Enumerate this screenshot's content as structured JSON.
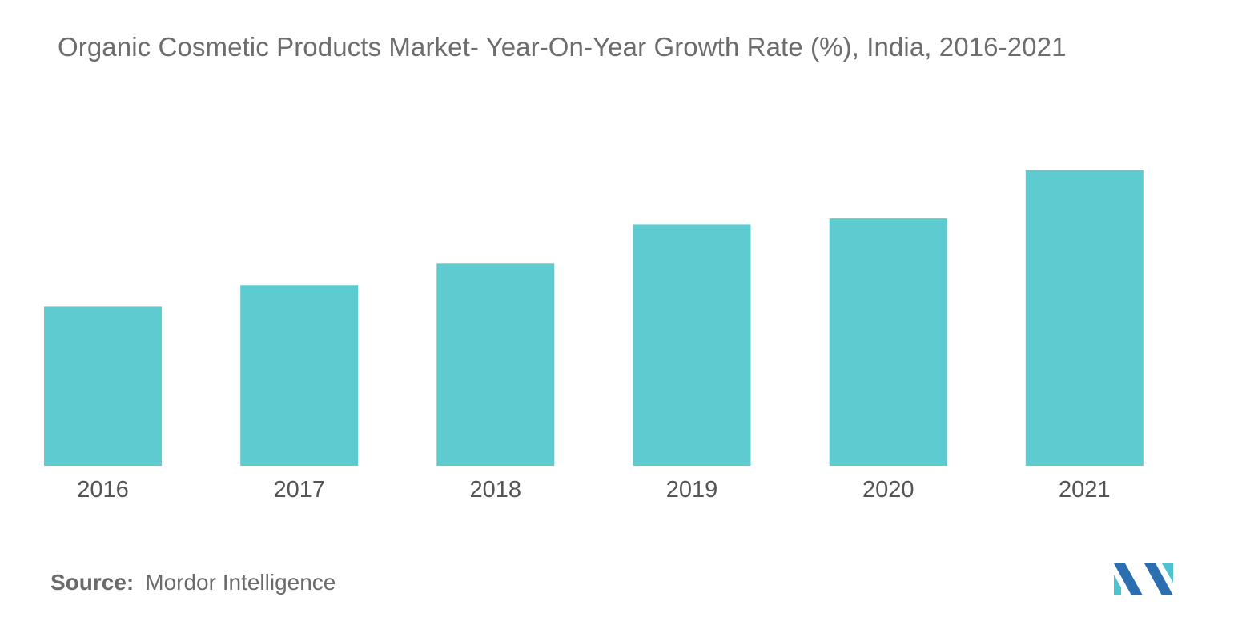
{
  "chart_data": {
    "type": "bar",
    "title": "Organic Cosmetic Products Market- Year-On-Year Growth Rate (%), India, 2016-2021",
    "categories": [
      "2016",
      "2017",
      "2018",
      "2019",
      "2020",
      "2021"
    ],
    "values": [
      19.1,
      21.7,
      24.3,
      29.0,
      29.7,
      35.5
    ],
    "xlabel": "",
    "ylabel": "",
    "ylim": [
      0,
      40
    ],
    "grid": false,
    "legend": "none",
    "bar_color": "#5ecbd1"
  },
  "source": {
    "label": "Source:",
    "value": "Mordor Intelligence"
  },
  "logo": {
    "icon": "mordor-intelligence-logo-icon",
    "colors": [
      "#2b6fb0",
      "#4ec3cf"
    ]
  }
}
